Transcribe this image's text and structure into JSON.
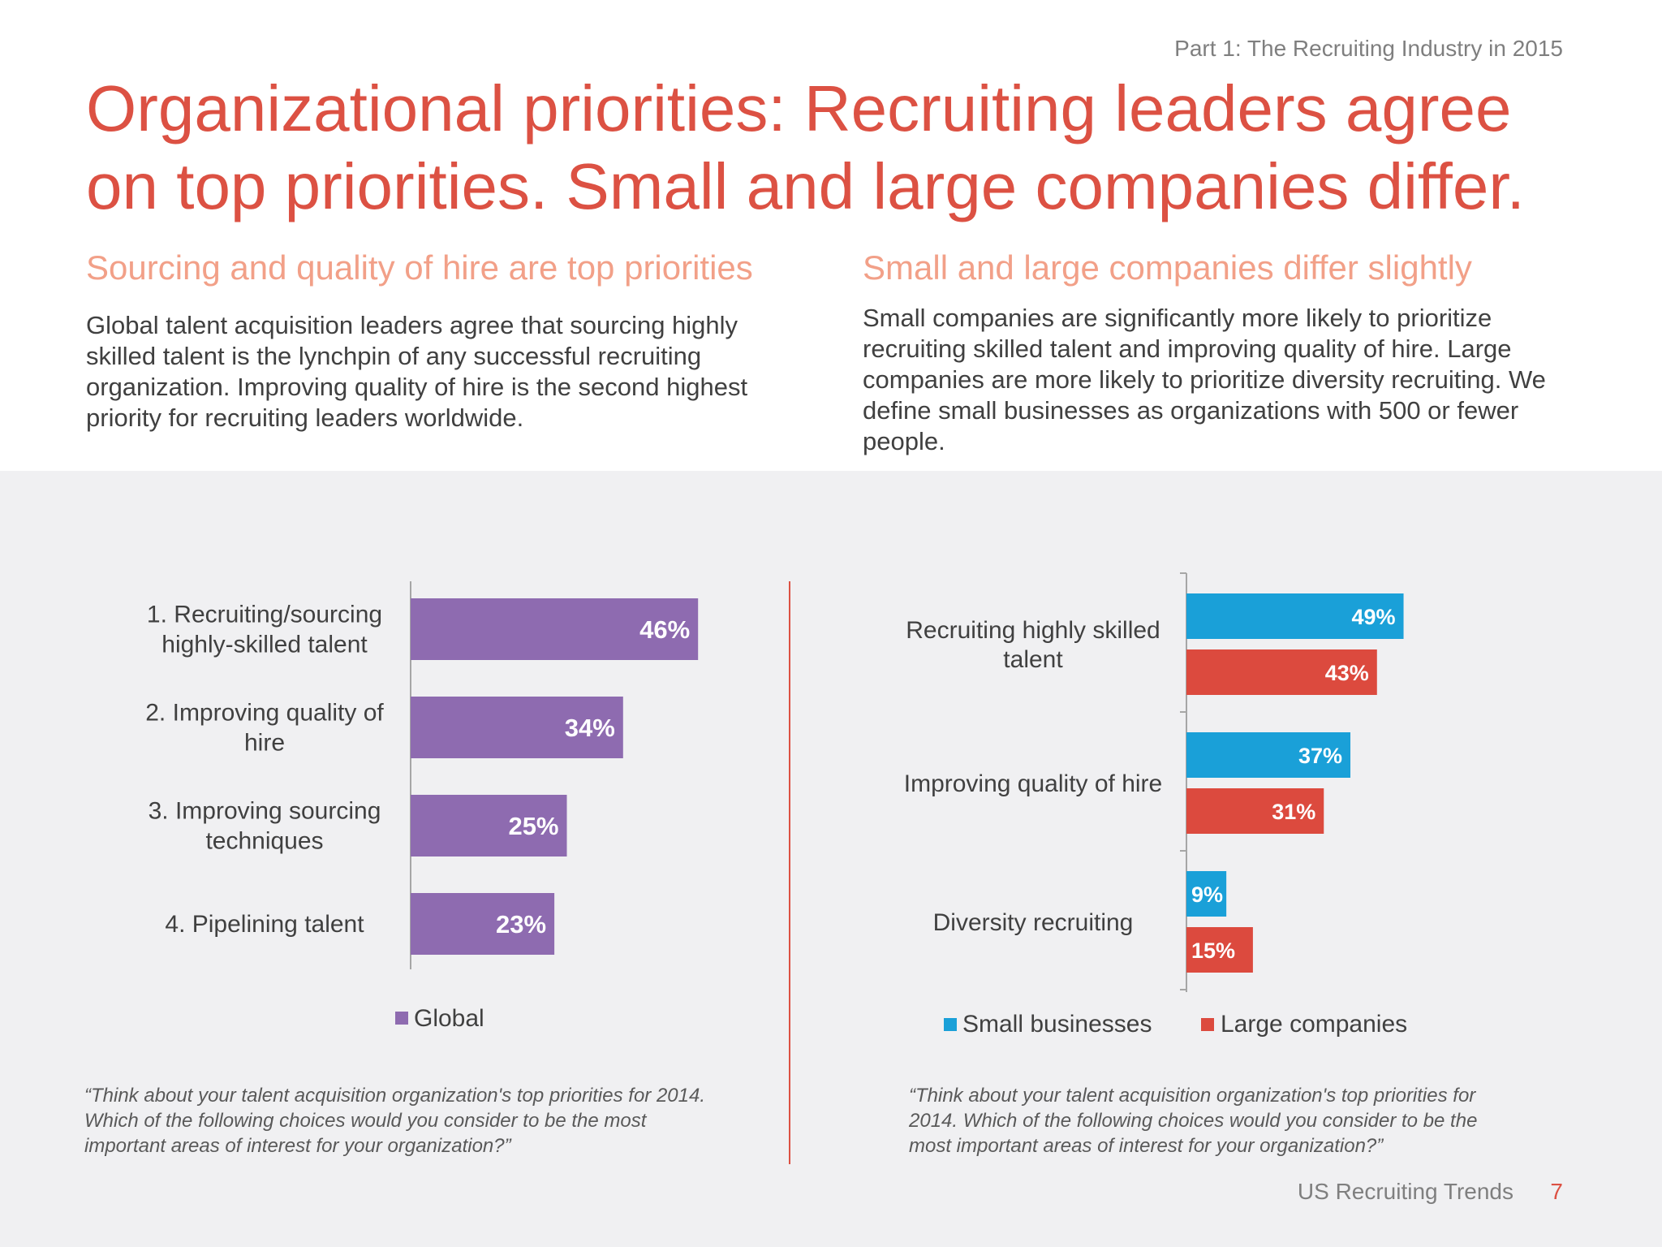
{
  "header": {
    "part_label": "Part 1: The Recruiting Industry in 2015",
    "title": "Organizational priorities: Recruiting leaders agree on top priorities. Small and large companies differ."
  },
  "left": {
    "subheading": "Sourcing and quality of hire are top priorities",
    "body": "Global talent acquisition leaders agree that sourcing highly skilled talent is the lynchpin of any successful recruiting organization. Improving quality of hire is the second highest priority for recruiting leaders worldwide.",
    "quote": "“Think about your talent acquisition organization's top priorities for 2014. Which of the following choices would you consider to be the most important areas of interest for your organization?”"
  },
  "right": {
    "subheading": "Small and large companies differ slightly",
    "body": "Small companies are significantly more likely to prioritize recruiting skilled talent and improving quality of hire. Large companies are more likely to prioritize diversity recruiting.  We define small businesses as organizations with 500 or fewer people.",
    "quote": "“Think about your talent acquisition organization's top priorities for 2014. Which of the following choices would you consider to be the most important areas of interest for your organization?”"
  },
  "footer": {
    "label": "US Recruiting Trends",
    "page": "7"
  },
  "chart_data": [
    {
      "type": "bar",
      "orientation": "horizontal",
      "categories": [
        [
          "1. Recruiting/sourcing",
          "highly-skilled talent"
        ],
        [
          "2. Improving quality of",
          "hire"
        ],
        [
          "3. Improving sourcing",
          "techniques"
        ],
        [
          "4. Pipelining talent"
        ]
      ],
      "series": [
        {
          "name": "Global",
          "values": [
            46,
            34,
            25,
            23
          ],
          "labels": [
            "46%",
            "34%",
            "25%",
            "23%"
          ],
          "color": "#8e6bb0"
        }
      ],
      "xlim": [
        0,
        100
      ],
      "legend": "bottom"
    },
    {
      "type": "bar",
      "orientation": "horizontal",
      "categories": [
        [
          "Recruiting highly skilled",
          "talent"
        ],
        [
          "Improving quality of hire"
        ],
        [
          "Diversity recruiting"
        ]
      ],
      "series": [
        {
          "name": "Small businesses",
          "values": [
            49,
            37,
            9
          ],
          "labels": [
            "49%",
            "37%",
            "9%"
          ],
          "color": "#1aa0d8"
        },
        {
          "name": "Large companies",
          "values": [
            43,
            31,
            15
          ],
          "labels": [
            "43%",
            "31%",
            "15%"
          ],
          "color": "#dc4a3e"
        }
      ],
      "xlim": [
        0,
        100
      ],
      "legend": "bottom"
    }
  ]
}
